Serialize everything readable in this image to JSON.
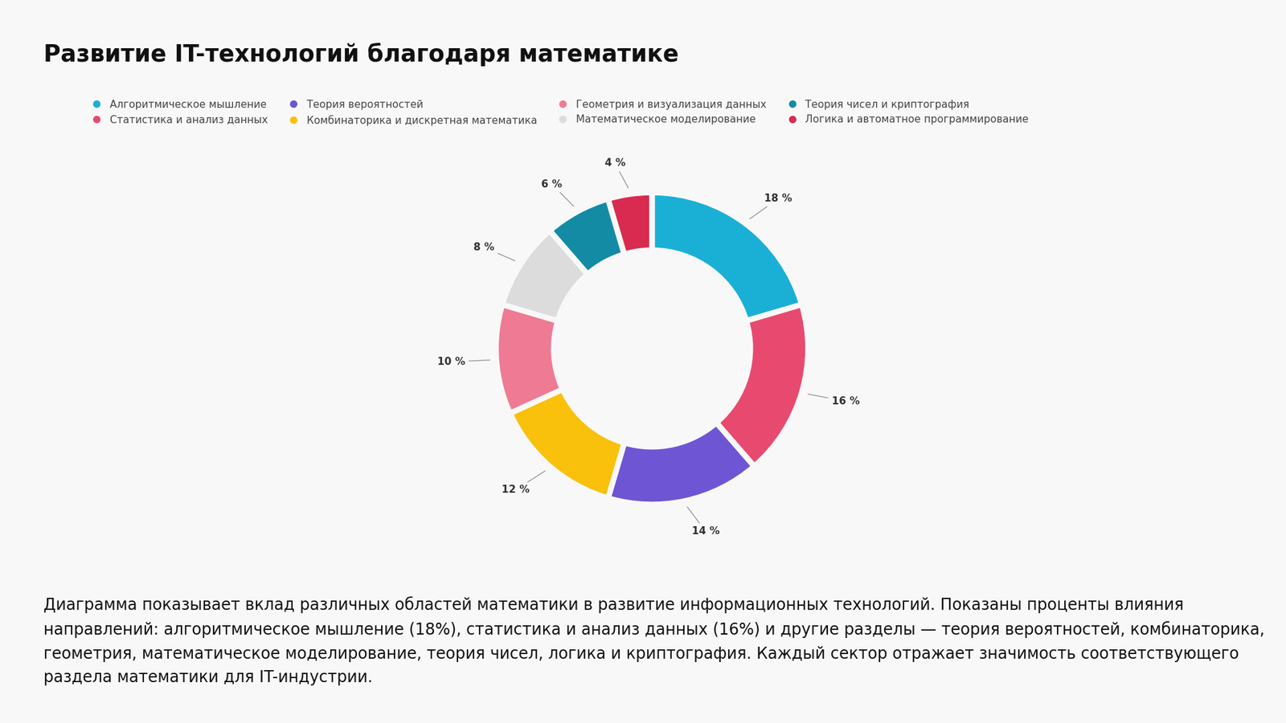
{
  "chart_data": {
    "type": "pie",
    "title": "Развитие IT-технологий благодаря математике",
    "categories": [
      "Алгоритмическое мышление",
      "Статистика и анализ данных",
      "Теория вероятностей",
      "Комбинаторика и дискретная математика",
      "Геометрия и визуализация данных",
      "Математическое моделирование",
      "Теория чисел и криптография",
      "Логика и автоматное программирование"
    ],
    "values": [
      18,
      16,
      14,
      12,
      10,
      8,
      6,
      4
    ],
    "value_labels": [
      "18 %",
      "16 %",
      "14 %",
      "12 %",
      "10 %",
      "8 %",
      "6 %",
      "4 %"
    ],
    "colors": [
      "#1ab0d6",
      "#e84a6f",
      "#6e55d4",
      "#f9c00c",
      "#ef7a93",
      "#dcdcdc",
      "#138ba5",
      "#d92b4f"
    ],
    "data_labels": true,
    "legend": "upper left",
    "annotations": [
      "Диаграмма показывает вклад различных областей математики в развитие информационных технологий. Показаны проценты влияния направлений: алгоритмическое мышление (18%), статистика и анализ данных (16%) и другие разделы — теория вероятностей, комбинаторика, геометрия, математическое моделирование, теория чисел, логика и криптография. Каждый сектор отражает значимость соответствующего раздела математики для IT-индустрии."
    ]
  }
}
